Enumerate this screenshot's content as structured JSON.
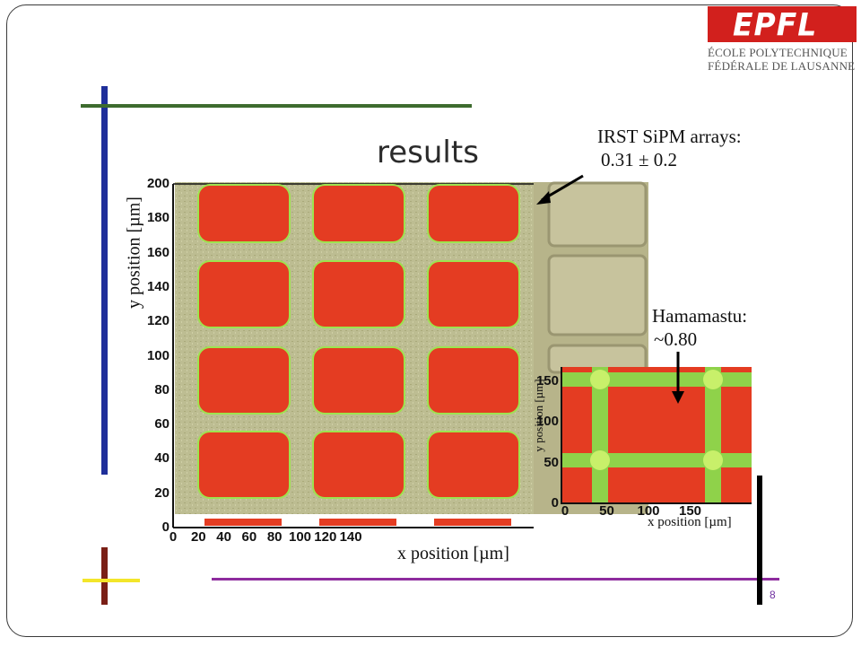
{
  "slide": {
    "title": "results",
    "page_number": "8",
    "colors": {
      "blue_bar": "#1f2f9a",
      "green_bar": "#3d6b2e",
      "brown_bar": "#7a1f16",
      "yellow_bar": "#f3e62a",
      "purple_bar": "#8e2c9e",
      "black_bar": "#000000",
      "sensitive_area": "#e43c22",
      "edge": "#7ddc3a",
      "background_chip": "#b9b98c"
    }
  },
  "logo": {
    "word": "EPFL",
    "line1": "ÉCOLE POLYTECHNIQUE",
    "line2": "FÉDÉRALE DE LAUSANNE"
  },
  "annotations": {
    "irst_label": "IRST SiPM arrays:",
    "irst_value": "0.31 ± 0.2",
    "hama_label": "Hamamastu:",
    "hama_value": "~0.80"
  },
  "main_plot": {
    "xlabel": "x position [µm]",
    "ylabel": "y position [µm]",
    "x_ticks": [
      "0",
      "20",
      "40",
      "60",
      "80",
      "100",
      "120",
      "140"
    ],
    "y_ticks": [
      "0",
      "20",
      "40",
      "60",
      "80",
      "100",
      "120",
      "140",
      "160",
      "180",
      "200"
    ]
  },
  "inset_plot": {
    "xlabel": "x position [µm]",
    "ylabel": "y position [µm]",
    "x_ticks": [
      "0",
      "50",
      "100",
      "150"
    ],
    "y_ticks": [
      "0",
      "50",
      "100",
      "150"
    ]
  }
}
